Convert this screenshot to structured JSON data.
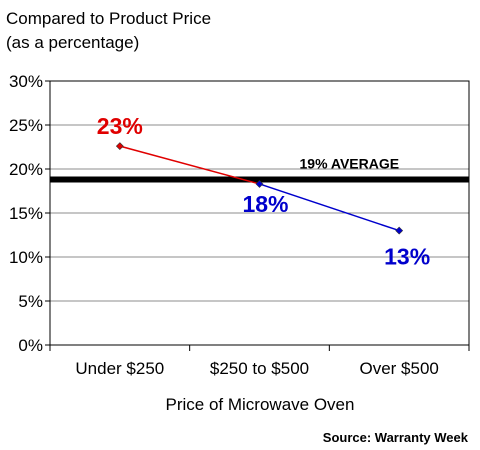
{
  "chart_data": {
    "type": "line",
    "title_lines": [
      "Compared to Product Price",
      "(as a percentage)"
    ],
    "xlabel": "Price of Microwave Oven",
    "ylabel": "",
    "categories": [
      "Under $250",
      "$250 to $500",
      "Over $500"
    ],
    "ylim": [
      0,
      30
    ],
    "yticks": [
      0,
      5,
      10,
      15,
      20,
      25,
      30
    ],
    "ytick_labels": [
      "0%",
      "5%",
      "10%",
      "15%",
      "20%",
      "25%",
      "30%"
    ],
    "grid": true,
    "points": [
      {
        "category": "Under $250",
        "value": 22.6,
        "label": "23%",
        "color": "#e00000"
      },
      {
        "category": "$250 to $500",
        "value": 18.3,
        "label": "18%",
        "color": "#0000cc"
      },
      {
        "category": "Over $500",
        "value": 13.0,
        "label": "13%",
        "color": "#0000cc"
      }
    ],
    "segment_colors": [
      "#e00000",
      "#0000cc"
    ],
    "reference_line": {
      "value": 18.8,
      "label": "19% AVERAGE",
      "color": "#000000"
    },
    "source": "Source: Warranty Week"
  }
}
